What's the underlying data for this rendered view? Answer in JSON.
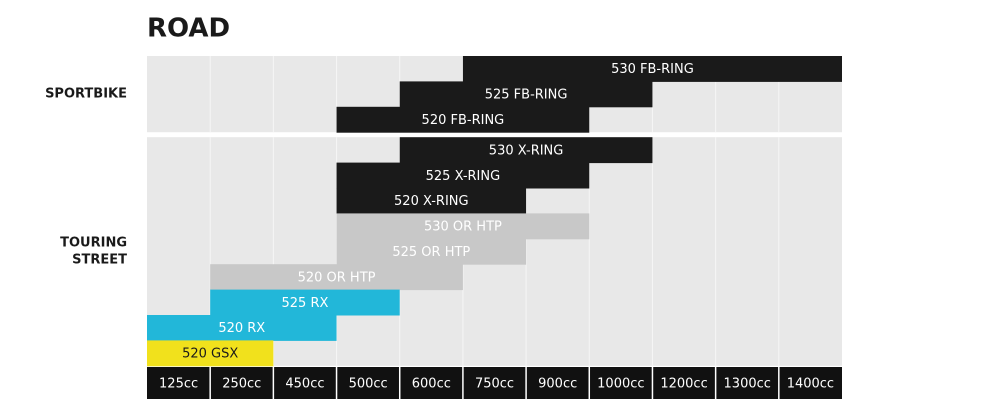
{
  "title": "ROAD",
  "columns": [
    "125cc",
    "250cc",
    "450cc",
    "500cc",
    "600cc",
    "750cc",
    "900cc",
    "1000cc",
    "1200cc",
    "1300cc",
    "1400cc"
  ],
  "groups": [
    {
      "label": [
        "SPORTBIKE"
      ],
      "bars": [
        {
          "label": "530 FB-RING",
          "from": "750cc",
          "to": "1400cc",
          "color": "#1a1a1a",
          "text_color": "#ffffff"
        },
        {
          "label": "525 FB-RING",
          "from": "600cc",
          "to": "1000cc",
          "color": "#1a1a1a",
          "text_color": "#ffffff"
        },
        {
          "label": "520 FB-RING",
          "from": "500cc",
          "to": "900cc",
          "color": "#1a1a1a",
          "text_color": "#ffffff"
        }
      ]
    },
    {
      "label": [
        "TOURING",
        "STREET"
      ],
      "bars": [
        {
          "label": "530 X-RING",
          "from": "600cc",
          "to": "1000cc",
          "color": "#1a1a1a",
          "text_color": "#ffffff"
        },
        {
          "label": "525 X-RING",
          "from": "500cc",
          "to": "900cc",
          "color": "#1a1a1a",
          "text_color": "#ffffff"
        },
        {
          "label": "520 X-RING",
          "from": "500cc",
          "to": "750cc",
          "color": "#1a1a1a",
          "text_color": "#ffffff"
        },
        {
          "label": "530 OR HTP",
          "from": "500cc",
          "to": "900cc",
          "color": "#c8c8c8",
          "text_color": "#ffffff"
        },
        {
          "label": "525 OR HTP",
          "from": "500cc",
          "to": "750cc",
          "color": "#c8c8c8",
          "text_color": "#ffffff"
        },
        {
          "label": "520 OR HTP",
          "from": "250cc",
          "to": "600cc",
          "color": "#c8c8c8",
          "text_color": "#ffffff"
        },
        {
          "label": "525 RX",
          "from": "250cc",
          "to": "500cc",
          "color": "#22b7d9",
          "text_color": "#ffffff"
        },
        {
          "label": "520 RX",
          "from": "125cc",
          "to": "450cc",
          "color": "#22b7d9",
          "text_color": "#ffffff"
        },
        {
          "label": "520 GSX",
          "from": "125cc",
          "to": "250cc",
          "color": "#f1e11c",
          "text_color": "#1a1a1a"
        }
      ]
    }
  ]
}
